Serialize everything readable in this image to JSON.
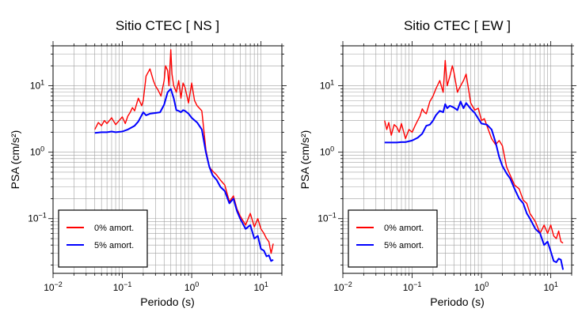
{
  "chart_data": [
    {
      "type": "line",
      "title": "Sitio CTEC [ NS ]",
      "xlabel": "Periodo (s)",
      "ylabel": "PSA (cm/s²)",
      "xscale": "log",
      "yscale": "log",
      "xlim": [
        0.01,
        20
      ],
      "ylim": [
        0.015,
        40
      ],
      "xticks": [
        0.01,
        0.1,
        1,
        10
      ],
      "xtick_labels": [
        [
          "10",
          "−2"
        ],
        [
          "10",
          "−1"
        ],
        [
          "10",
          "0"
        ],
        [
          "10",
          "1"
        ]
      ],
      "yticks": [
        0.1,
        1,
        10
      ],
      "ytick_labels": [
        [
          "10",
          "−1"
        ],
        [
          "10",
          "0"
        ],
        [
          "10",
          "1"
        ]
      ],
      "grid": true,
      "legend_position": "bottom-left",
      "series": [
        {
          "name": "0% amort.",
          "color": "#ff0000",
          "x": [
            0.04,
            0.045,
            0.05,
            0.055,
            0.06,
            0.07,
            0.08,
            0.09,
            0.1,
            0.11,
            0.12,
            0.13,
            0.14,
            0.15,
            0.17,
            0.19,
            0.2,
            0.22,
            0.25,
            0.28,
            0.3,
            0.33,
            0.36,
            0.4,
            0.42,
            0.45,
            0.47,
            0.5,
            0.52,
            0.55,
            0.6,
            0.65,
            0.7,
            0.75,
            0.8,
            0.9,
            1.0,
            1.1,
            1.2,
            1.4,
            1.6,
            1.8,
            2.0,
            2.3,
            2.6,
            3.0,
            3.5,
            4.0,
            4.5,
            5.0,
            6.0,
            7.0,
            8.0,
            9.0,
            10.0,
            11.0,
            12.0,
            13.0,
            14.0,
            15.0
          ],
          "y": [
            2.2,
            2.8,
            2.5,
            3.0,
            2.7,
            3.3,
            2.6,
            3.0,
            3.4,
            2.7,
            3.5,
            4.0,
            4.7,
            4.2,
            6.5,
            5.0,
            6.0,
            14.0,
            18.0,
            12.0,
            10.0,
            8.5,
            7.0,
            12.0,
            20.0,
            17.0,
            10.0,
            35.0,
            15.0,
            10.0,
            8.0,
            12.0,
            6.5,
            11.0,
            9.5,
            5.5,
            11.0,
            6.0,
            5.0,
            4.2,
            1.1,
            0.6,
            0.52,
            0.45,
            0.38,
            0.32,
            0.18,
            0.22,
            0.14,
            0.11,
            0.08,
            0.12,
            0.075,
            0.1,
            0.07,
            0.06,
            0.05,
            0.045,
            0.03,
            0.042
          ]
        },
        {
          "name": "5% amort.",
          "color": "#0000ff",
          "x": [
            0.04,
            0.05,
            0.06,
            0.07,
            0.08,
            0.1,
            0.12,
            0.14,
            0.15,
            0.17,
            0.2,
            0.22,
            0.25,
            0.3,
            0.35,
            0.4,
            0.45,
            0.5,
            0.55,
            0.6,
            0.65,
            0.7,
            0.75,
            0.8,
            0.9,
            1.0,
            1.2,
            1.4,
            1.6,
            1.8,
            2.0,
            2.3,
            2.6,
            3.0,
            3.5,
            4.0,
            4.5,
            5.0,
            6.0,
            7.0,
            8.0,
            9.0,
            10.0,
            11.0,
            12.0,
            13.0,
            14.0,
            15.0
          ],
          "y": [
            1.95,
            2.0,
            2.0,
            2.05,
            2.0,
            2.05,
            2.2,
            2.4,
            2.5,
            2.9,
            4.0,
            3.6,
            3.8,
            3.9,
            4.0,
            5.2,
            8.0,
            9.0,
            6.5,
            4.3,
            4.2,
            4.0,
            4.3,
            4.2,
            3.8,
            3.3,
            2.8,
            2.2,
            1.0,
            0.6,
            0.45,
            0.38,
            0.3,
            0.26,
            0.17,
            0.2,
            0.13,
            0.1,
            0.07,
            0.08,
            0.05,
            0.055,
            0.035,
            0.033,
            0.027,
            0.028,
            0.023,
            0.024
          ]
        }
      ]
    },
    {
      "type": "line",
      "title": "Sitio CTEC [ EW ]",
      "xlabel": "Periodo (s)",
      "ylabel": "PSA (cm/s²)",
      "xscale": "log",
      "yscale": "log",
      "xlim": [
        0.01,
        20
      ],
      "ylim": [
        0.015,
        40
      ],
      "xticks": [
        0.01,
        0.1,
        1,
        10
      ],
      "xtick_labels": [
        [
          "10",
          "−2"
        ],
        [
          "10",
          "−1"
        ],
        [
          "10",
          "0"
        ],
        [
          "10",
          "1"
        ]
      ],
      "yticks": [
        0.1,
        1,
        10
      ],
      "ytick_labels": [
        [
          "10",
          "−1"
        ],
        [
          "10",
          "0"
        ],
        [
          "10",
          "1"
        ]
      ],
      "grid": true,
      "legend_position": "bottom-left",
      "series": [
        {
          "name": "0% amort.",
          "color": "#ff0000",
          "x": [
            0.04,
            0.043,
            0.046,
            0.05,
            0.055,
            0.06,
            0.065,
            0.07,
            0.08,
            0.09,
            0.1,
            0.11,
            0.12,
            0.13,
            0.14,
            0.15,
            0.16,
            0.18,
            0.2,
            0.22,
            0.25,
            0.28,
            0.3,
            0.32,
            0.35,
            0.38,
            0.4,
            0.45,
            0.5,
            0.55,
            0.6,
            0.65,
            0.7,
            0.8,
            0.9,
            1.0,
            1.1,
            1.2,
            1.4,
            1.6,
            1.8,
            2.0,
            2.3,
            2.6,
            3.0,
            3.5,
            4.0,
            4.5,
            5.0,
            6.0,
            7.0,
            8.0,
            9.0,
            10.0,
            11.0,
            12.0,
            13.0,
            14.0,
            15.0
          ],
          "y": [
            3.0,
            2.2,
            2.8,
            1.8,
            2.6,
            2.4,
            2.0,
            2.7,
            1.6,
            2.2,
            2.0,
            2.5,
            3.0,
            3.5,
            4.5,
            4.0,
            3.8,
            5.8,
            7.0,
            9.0,
            12.0,
            8.0,
            24.0,
            10.0,
            14.0,
            20.0,
            16.0,
            8.0,
            10.0,
            12.0,
            15.0,
            9.0,
            5.5,
            4.3,
            4.6,
            3.0,
            3.2,
            2.5,
            1.6,
            1.3,
            1.5,
            1.25,
            0.6,
            0.45,
            0.32,
            0.28,
            0.19,
            0.17,
            0.12,
            0.09,
            0.06,
            0.08,
            0.06,
            0.08,
            0.055,
            0.05,
            0.065,
            0.045,
            0.043
          ]
        },
        {
          "name": "5% amort.",
          "color": "#0000ff",
          "x": [
            0.04,
            0.05,
            0.06,
            0.07,
            0.08,
            0.1,
            0.12,
            0.14,
            0.16,
            0.18,
            0.2,
            0.22,
            0.25,
            0.28,
            0.3,
            0.32,
            0.35,
            0.4,
            0.45,
            0.5,
            0.55,
            0.6,
            0.7,
            0.8,
            0.9,
            1.0,
            1.2,
            1.4,
            1.6,
            1.8,
            2.0,
            2.3,
            2.6,
            3.0,
            3.5,
            4.0,
            4.5,
            5.0,
            6.0,
            7.0,
            8.0,
            9.0,
            10.0,
            11.0,
            12.0,
            13.0,
            14.0,
            15.0
          ],
          "y": [
            1.4,
            1.4,
            1.4,
            1.42,
            1.42,
            1.5,
            1.65,
            1.9,
            2.5,
            2.6,
            3.0,
            3.6,
            4.2,
            4.0,
            5.3,
            4.6,
            5.0,
            4.7,
            4.3,
            5.8,
            4.6,
            5.5,
            4.5,
            3.9,
            3.2,
            2.7,
            2.6,
            2.2,
            1.4,
            0.85,
            0.62,
            0.48,
            0.4,
            0.28,
            0.2,
            0.17,
            0.12,
            0.1,
            0.07,
            0.06,
            0.04,
            0.045,
            0.032,
            0.023,
            0.022,
            0.025,
            0.024,
            0.017
          ]
        }
      ]
    }
  ]
}
